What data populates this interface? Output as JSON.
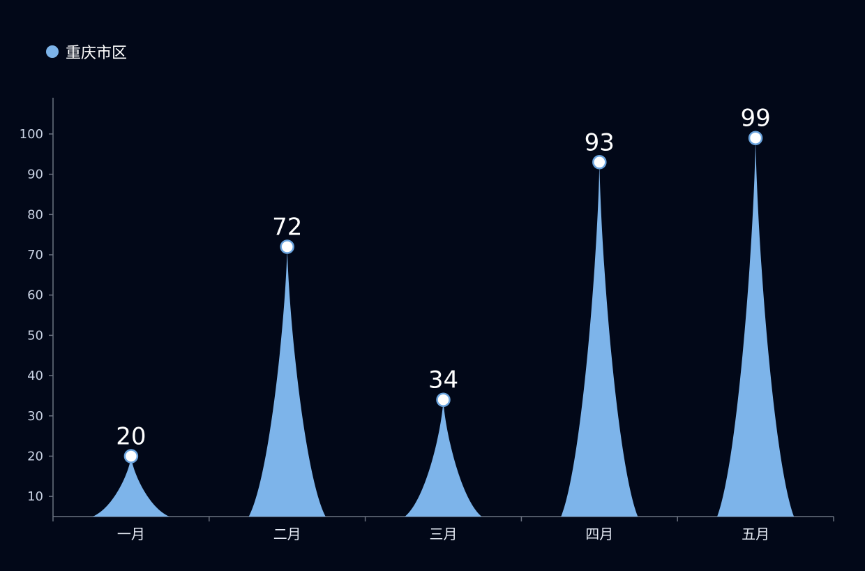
{
  "colors": {
    "background": "#020818",
    "series": "#7db4ea",
    "axis": "#6b7280",
    "marker_fill": "#ffffff",
    "marker_stroke": "#6aa3dd"
  },
  "chart_data": {
    "type": "bar",
    "bar_shape": "pictorial-spike",
    "categories": [
      "一月",
      "二月",
      "三月",
      "四月",
      "五月"
    ],
    "series": [
      {
        "name": "重庆市区",
        "values": [
          20,
          72,
          34,
          93,
          99
        ]
      }
    ],
    "yticks": [
      10,
      20,
      30,
      40,
      50,
      60,
      70,
      80,
      90,
      100
    ],
    "ylim": [
      5,
      109
    ],
    "grid": false,
    "legend": "top-left",
    "data_labels": true
  }
}
